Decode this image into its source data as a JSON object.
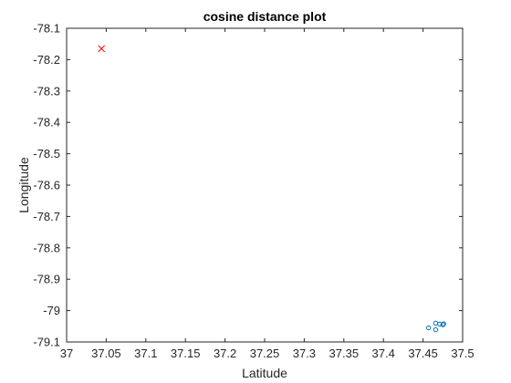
{
  "chart_data": {
    "type": "scatter",
    "title": "cosine distance plot",
    "xlabel": "Latitude",
    "ylabel": "Longitude",
    "xlim": [
      37,
      37.5
    ],
    "ylim": [
      -79.1,
      -78.1
    ],
    "xticks": [
      37,
      37.05,
      37.1,
      37.15,
      37.2,
      37.25,
      37.3,
      37.35,
      37.4,
      37.45,
      37.5
    ],
    "xtick_labels": [
      "37",
      "37.05",
      "37.1",
      "37.15",
      "37.2",
      "37.25",
      "37.3",
      "37.35",
      "37.4",
      "37.45",
      "37.5"
    ],
    "yticks": [
      -78.1,
      -78.2,
      -78.3,
      -78.4,
      -78.5,
      -78.6,
      -78.7,
      -78.8,
      -78.9,
      -79,
      -79.1
    ],
    "ytick_labels": [
      "-78.1",
      "-78.2",
      "-78.3",
      "-78.4",
      "-78.5",
      "-78.6",
      "-78.7",
      "-78.8",
      "-78.9",
      "-79",
      "-79.1"
    ],
    "grid": false,
    "series": [
      {
        "marker": "circle",
        "color": "#0072BD",
        "points": [
          {
            "x": 37.457,
            "y": -79.055
          },
          {
            "x": 37.466,
            "y": -79.04
          },
          {
            "x": 37.466,
            "y": -79.061
          },
          {
            "x": 37.471,
            "y": -79.043
          },
          {
            "x": 37.475,
            "y": -79.045
          },
          {
            "x": 37.476,
            "y": -79.042
          }
        ]
      },
      {
        "marker": "x",
        "color": "#FF0000",
        "points": [
          {
            "x": 37.044,
            "y": -78.165
          }
        ]
      }
    ]
  }
}
